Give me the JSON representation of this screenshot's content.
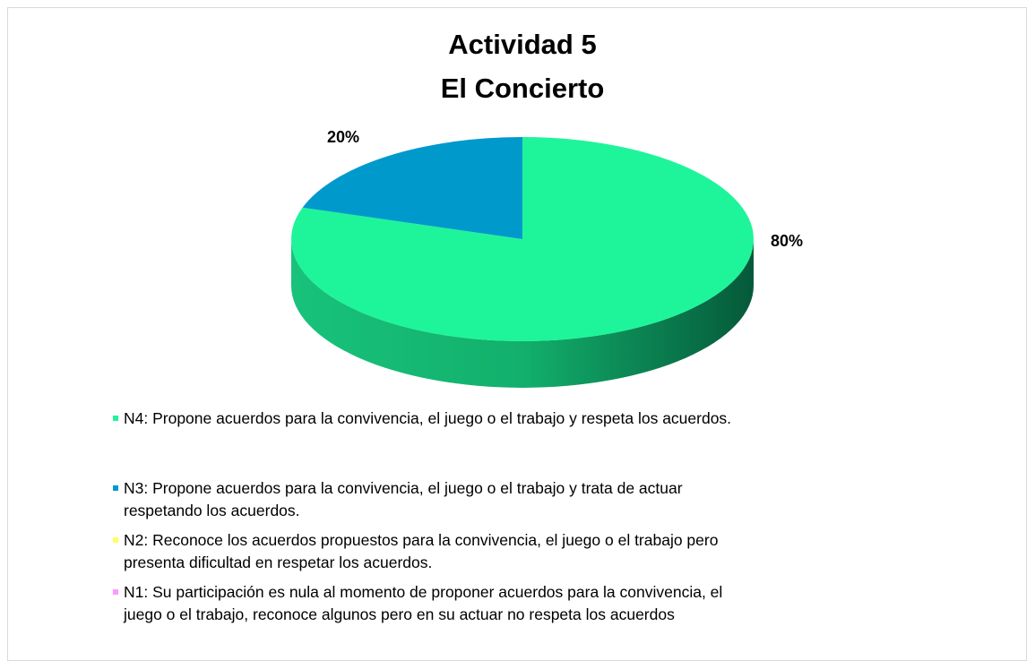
{
  "chart_data": {
    "type": "pie",
    "title": "Actividad 5",
    "subtitle": "El Concierto",
    "categories": [
      "N4: Propone acuerdos para la convivencia, el juego o el trabajo y respeta los acuerdos.",
      "N3: Propone acuerdos para la convivencia, el juego o el trabajo y trata de actuar respetando los acuerdos.",
      "N2: Reconoce los acuerdos propuestos para la convivencia, el juego o el trabajo pero presenta dificultad en respetar los acuerdos.",
      "N1: Su participación es nula al momento de proponer acuerdos para la convivencia, el juego o el trabajo, reconoce algunos pero en su actuar no respeta los acuerdos"
    ],
    "values": [
      80,
      20,
      0,
      0
    ],
    "value_labels": [
      "80%",
      "20%",
      null,
      null
    ],
    "colors": [
      "#1ef59a",
      "#0099cc",
      "#ffff66",
      "#ff99ff"
    ],
    "legend": "bottom"
  }
}
